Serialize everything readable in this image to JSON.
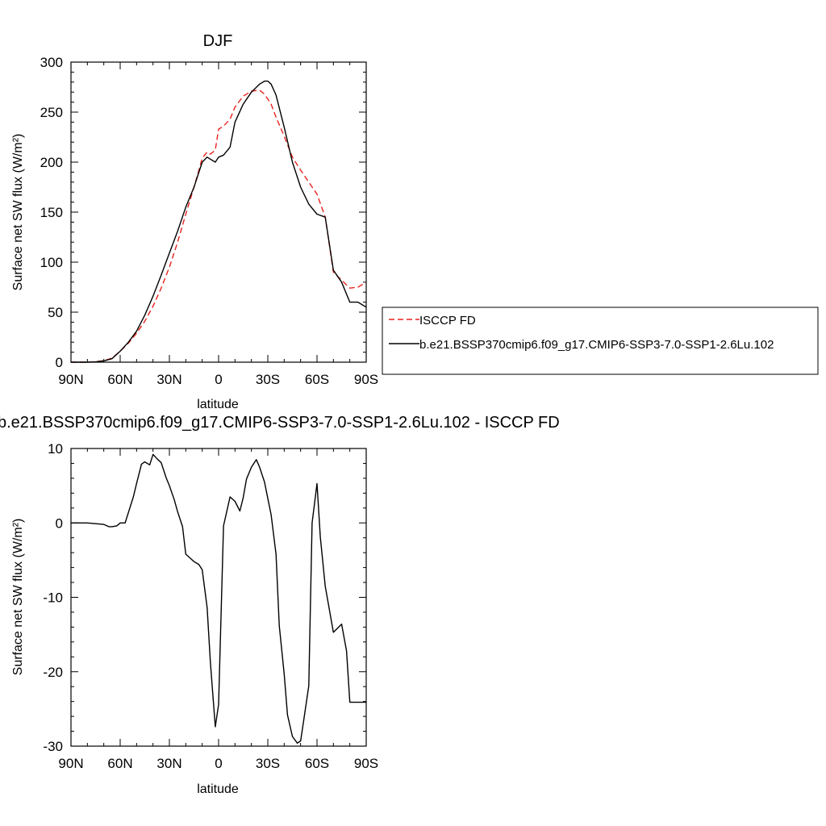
{
  "chart_data": [
    {
      "type": "line",
      "title": "DJF",
      "xlabel": "latitude",
      "ylabel": "Surface net SW flux (W/m²)",
      "xlim": [
        90,
        -90
      ],
      "ylim": [
        0,
        300
      ],
      "x_ticks": [
        90,
        60,
        30,
        0,
        -30,
        -60,
        -90
      ],
      "x_tick_labels": [
        "90N",
        "60N",
        "30N",
        "0",
        "30S",
        "60S",
        "90S"
      ],
      "y_ticks": [
        0,
        50,
        100,
        150,
        200,
        250,
        300
      ],
      "y_tick_labels": [
        "0",
        "50",
        "100",
        "150",
        "200",
        "250",
        "300"
      ],
      "legend_position": "right",
      "series": [
        {
          "name": "ISCCP FD",
          "color": "#e8231f",
          "dash": "dashed",
          "x": [
            90,
            85,
            80,
            75,
            70,
            65,
            60,
            55,
            50,
            45,
            40,
            35,
            30,
            25,
            20,
            15,
            12,
            10,
            7,
            5,
            2,
            0,
            -3,
            -7,
            -10,
            -15,
            -20,
            -25,
            -28,
            -32,
            -35,
            -40,
            -45,
            -50,
            -55,
            -60,
            -65,
            -70,
            -75,
            -80,
            -85,
            -90
          ],
          "values": [
            0,
            0,
            0,
            0.5,
            1.5,
            4,
            11,
            19,
            29,
            41,
            56,
            74,
            95,
            120,
            148,
            175,
            192,
            204,
            210,
            208,
            212,
            233,
            236,
            243,
            255,
            266,
            271,
            272,
            268,
            258,
            245,
            226,
            205,
            192,
            180,
            168,
            145,
            90,
            82,
            74,
            75,
            80
          ]
        },
        {
          "name": "b.e21.BSSP370cmip6.f09_g17.CMIP6-SSP3-7.0-SSP1-2.6Lu.102",
          "color": "#000000",
          "dash": "solid",
          "x": [
            90,
            85,
            80,
            75,
            70,
            65,
            60,
            55,
            50,
            45,
            40,
            35,
            30,
            25,
            20,
            15,
            12,
            10,
            7,
            5,
            2,
            0,
            -3,
            -7,
            -10,
            -15,
            -20,
            -25,
            -28,
            -30,
            -32,
            -35,
            -40,
            -45,
            -50,
            -55,
            -60,
            -65,
            -70,
            -75,
            -80,
            -85,
            -90
          ],
          "values": [
            0,
            0,
            0,
            0.3,
            1.3,
            3.5,
            11,
            20,
            31,
            47,
            66,
            87,
            109,
            131,
            155,
            175,
            190,
            200,
            205,
            203,
            200,
            205,
            207,
            215,
            240,
            258,
            270,
            278,
            281,
            281,
            278,
            267,
            235,
            200,
            175,
            158,
            148,
            145,
            92,
            80,
            60,
            60,
            55
          ]
        }
      ]
    },
    {
      "type": "line",
      "title": "b.e21.BSSP370cmip6.f09_g17.CMIP6-SSP3-7.0-SSP1-2.6Lu.102 - ISCCP FD",
      "xlabel": "latitude",
      "ylabel": "Surface net SW flux (W/m²)",
      "xlim": [
        90,
        -90
      ],
      "ylim": [
        -30,
        10
      ],
      "x_ticks": [
        90,
        60,
        30,
        0,
        -30,
        -60,
        -90
      ],
      "x_tick_labels": [
        "90N",
        "60N",
        "30N",
        "0",
        "30S",
        "60S",
        "90S"
      ],
      "y_ticks": [
        -30,
        -20,
        -10,
        0,
        10
      ],
      "y_tick_labels": [
        "-30",
        "-20",
        "-10",
        "0",
        "10"
      ],
      "series": [
        {
          "color": "#000000",
          "dash": "solid",
          "x": [
            90,
            85,
            80,
            75,
            70,
            67,
            65,
            62,
            60,
            57,
            55,
            52,
            50,
            47,
            45,
            42,
            40,
            37,
            35,
            32,
            30,
            27,
            25,
            22,
            20,
            17,
            15,
            12,
            10,
            7,
            5,
            2,
            0,
            -3,
            -7,
            -10,
            -13,
            -15,
            -17,
            -20,
            -23,
            -25,
            -28,
            -30,
            -32,
            -35,
            -37,
            -40,
            -42,
            -45,
            -48,
            -50,
            -52,
            -55,
            -57,
            -60,
            -62,
            -65,
            -70,
            -75,
            -78,
            -80,
            -83,
            -85,
            -88,
            -90
          ],
          "values": [
            0,
            0,
            0,
            -0.1,
            -0.2,
            -0.5,
            -0.5,
            -0.4,
            0,
            0,
            1.4,
            3.5,
            5.3,
            7.9,
            8.2,
            7.8,
            9.2,
            8.5,
            8.1,
            6.1,
            5.0,
            3.1,
            1.5,
            -0.5,
            -4.2,
            -4.8,
            -5.2,
            -5.6,
            -6.3,
            -11.4,
            -18.7,
            -27.4,
            -24.4,
            -0.4,
            3.5,
            2.9,
            1.6,
            3.4,
            5.9,
            7.5,
            8.5,
            7.5,
            5.5,
            3.3,
            1.1,
            -4.2,
            -13.8,
            -20.3,
            -25.8,
            -28.7,
            -29.6,
            -29.3,
            -26.4,
            -21.9,
            0,
            5.3,
            -1.9,
            -8.5,
            -14.7,
            -13.6,
            -17.2,
            -24.1,
            -24.1,
            -24.1,
            -24.1,
            -24.1
          ]
        }
      ]
    }
  ]
}
